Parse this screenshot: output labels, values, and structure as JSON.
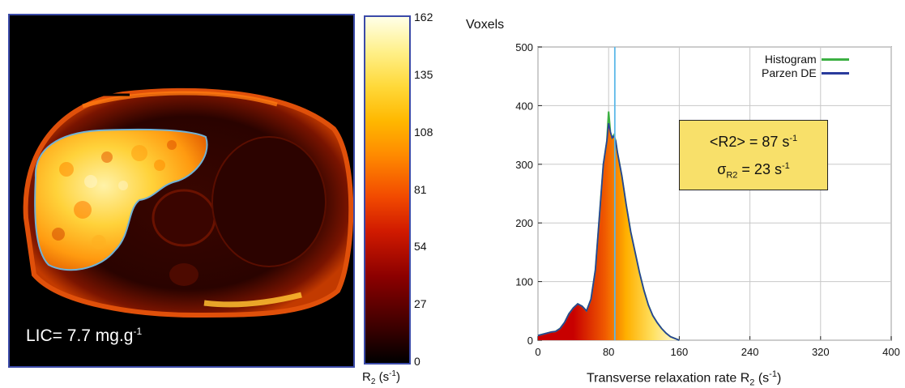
{
  "mri": {
    "lic_text": "LIC= 7.7 mg.g",
    "lic_sup": "-1"
  },
  "colorbar": {
    "ticks": [
      "162",
      "135",
      "108",
      "81",
      "54",
      "27",
      "0"
    ],
    "unit_main": "R",
    "unit_sub": "2",
    "unit_paren": " (s",
    "unit_sup": "-1",
    "unit_close": ")"
  },
  "chart_data": {
    "type": "area",
    "ylabel": "Voxels",
    "xlabel_main": "Transverse relaxation rate R",
    "xlabel_sub": "2",
    "xlabel_unit": " (s",
    "xlabel_sup": "-1",
    "xlabel_close": ")",
    "xlim": [
      0,
      400
    ],
    "ylim": [
      0,
      500
    ],
    "xticks": [
      "0",
      "80",
      "160",
      "240",
      "320",
      "400"
    ],
    "yticks": [
      "0",
      "100",
      "200",
      "300",
      "400",
      "500"
    ],
    "grid": true,
    "legend_position": "top-right",
    "series": [
      {
        "name": "Histogram",
        "color": "#3cb043",
        "x": [
          0,
          5,
          10,
          15,
          20,
          25,
          30,
          35,
          40,
          45,
          50,
          55,
          60,
          65,
          70,
          74,
          78,
          80,
          82,
          84,
          86,
          88,
          90,
          95,
          100,
          105,
          110,
          115,
          120,
          125,
          130,
          135,
          140,
          145,
          150,
          155,
          160
        ],
        "y": [
          8,
          10,
          12,
          14,
          15,
          20,
          30,
          45,
          55,
          62,
          58,
          50,
          70,
          120,
          220,
          300,
          340,
          390,
          355,
          345,
          350,
          340,
          320,
          280,
          230,
          185,
          150,
          115,
          85,
          60,
          42,
          30,
          20,
          12,
          6,
          3,
          0
        ]
      },
      {
        "name": "Parzen DE",
        "color": "#2a3b9c",
        "x": [
          0,
          5,
          10,
          15,
          20,
          25,
          30,
          35,
          40,
          45,
          50,
          55,
          60,
          65,
          70,
          74,
          78,
          80,
          82,
          84,
          86,
          88,
          90,
          95,
          100,
          105,
          110,
          115,
          120,
          125,
          130,
          135,
          140,
          145,
          150,
          155,
          160
        ],
        "y": [
          8,
          10,
          12,
          14,
          15,
          20,
          30,
          45,
          55,
          62,
          58,
          50,
          70,
          120,
          220,
          300,
          340,
          370,
          355,
          345,
          348,
          340,
          320,
          280,
          230,
          185,
          150,
          115,
          85,
          60,
          42,
          30,
          20,
          12,
          6,
          3,
          0
        ]
      }
    ],
    "annotations": [
      {
        "type": "vline",
        "x": 87,
        "color": "#5bb8e8"
      }
    ],
    "stats": {
      "mean_label": "<R2> = 87 s",
      "mean_sup": "-1",
      "sigma_symbol": "σ",
      "sigma_sub": "R2",
      "sigma_text": " = 23 s",
      "sigma_sup": "-1"
    }
  }
}
